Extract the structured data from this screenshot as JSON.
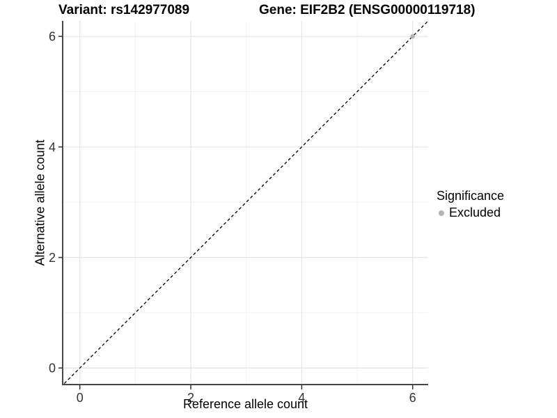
{
  "chart_data": {
    "type": "scatter",
    "title_variant": "Variant: rs142977089",
    "title_gene": "Gene: EIF2B2 (ENSG00000119718)",
    "xlabel": "Reference allele count",
    "ylabel": "Alternative allele count",
    "xlim": [
      -0.31,
      6.28
    ],
    "ylim": [
      -0.3,
      6.28
    ],
    "xticks": [
      0,
      2,
      4,
      6
    ],
    "yticks": [
      0,
      2,
      4,
      6
    ],
    "xminor": [
      1,
      3,
      5
    ],
    "yminor": [
      1,
      3,
      5
    ],
    "grid": "major+minor",
    "legend_position": "right",
    "series": [
      {
        "name": "Excluded",
        "color": "#b3b3b3",
        "points": [
          [
            6,
            6
          ]
        ]
      }
    ],
    "reference_line": {
      "type": "identity",
      "equation": "y = x",
      "style": "dashed",
      "color": "#000000",
      "range": [
        -0.35,
        6.3
      ]
    },
    "legend": {
      "title": "Significance",
      "entries": [
        {
          "label": "Excluded",
          "color": "#b3b3b3"
        }
      ]
    },
    "style": {
      "background": "#ffffff",
      "grid_major": "#e6e6e6",
      "grid_minor": "#f2f2f2",
      "axis": "#474747",
      "tick_color": "#333333",
      "tick_label_color": "#333333"
    }
  }
}
